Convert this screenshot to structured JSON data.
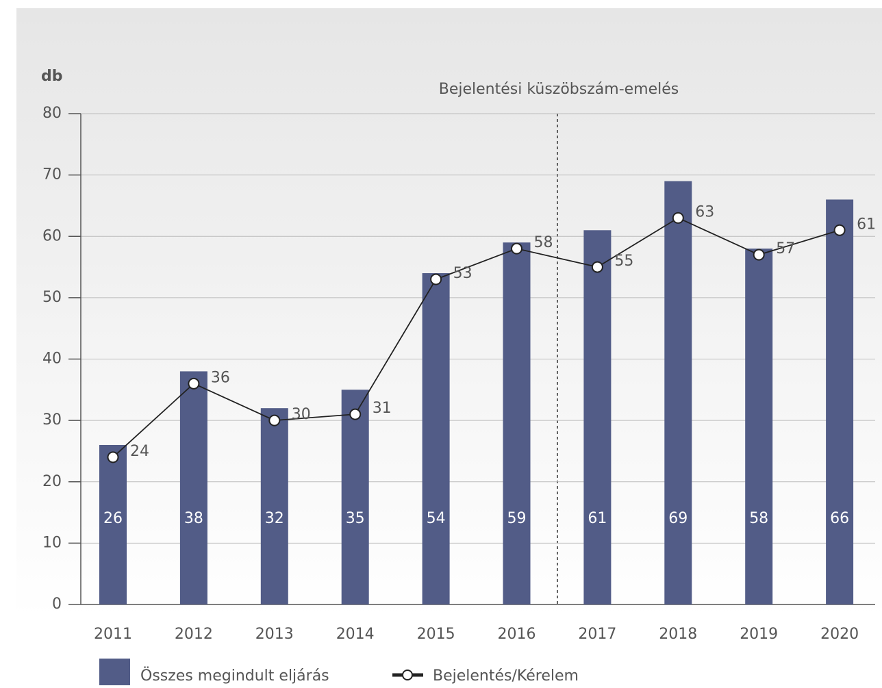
{
  "chart_data": {
    "type": "bar",
    "y_label": "db",
    "annotation": "Bejelentési küszöbszám-emelés",
    "categories": [
      "2011",
      "2012",
      "2013",
      "2014",
      "2015",
      "2016",
      "2017",
      "2018",
      "2019",
      "2020"
    ],
    "series": [
      {
        "name": "Összes megindult eljárás",
        "type": "bar",
        "color": "#525c87",
        "values": [
          26,
          38,
          32,
          35,
          54,
          59,
          61,
          69,
          58,
          66
        ]
      },
      {
        "name": "Bejelentés/Kérelem",
        "type": "line",
        "color": "#222222",
        "values": [
          24,
          36,
          30,
          31,
          53,
          58,
          55,
          63,
          57,
          61
        ]
      }
    ],
    "ylim": [
      0,
      80
    ],
    "yticks": [
      0,
      10,
      20,
      30,
      40,
      50,
      60,
      70,
      80
    ],
    "grid": true
  }
}
